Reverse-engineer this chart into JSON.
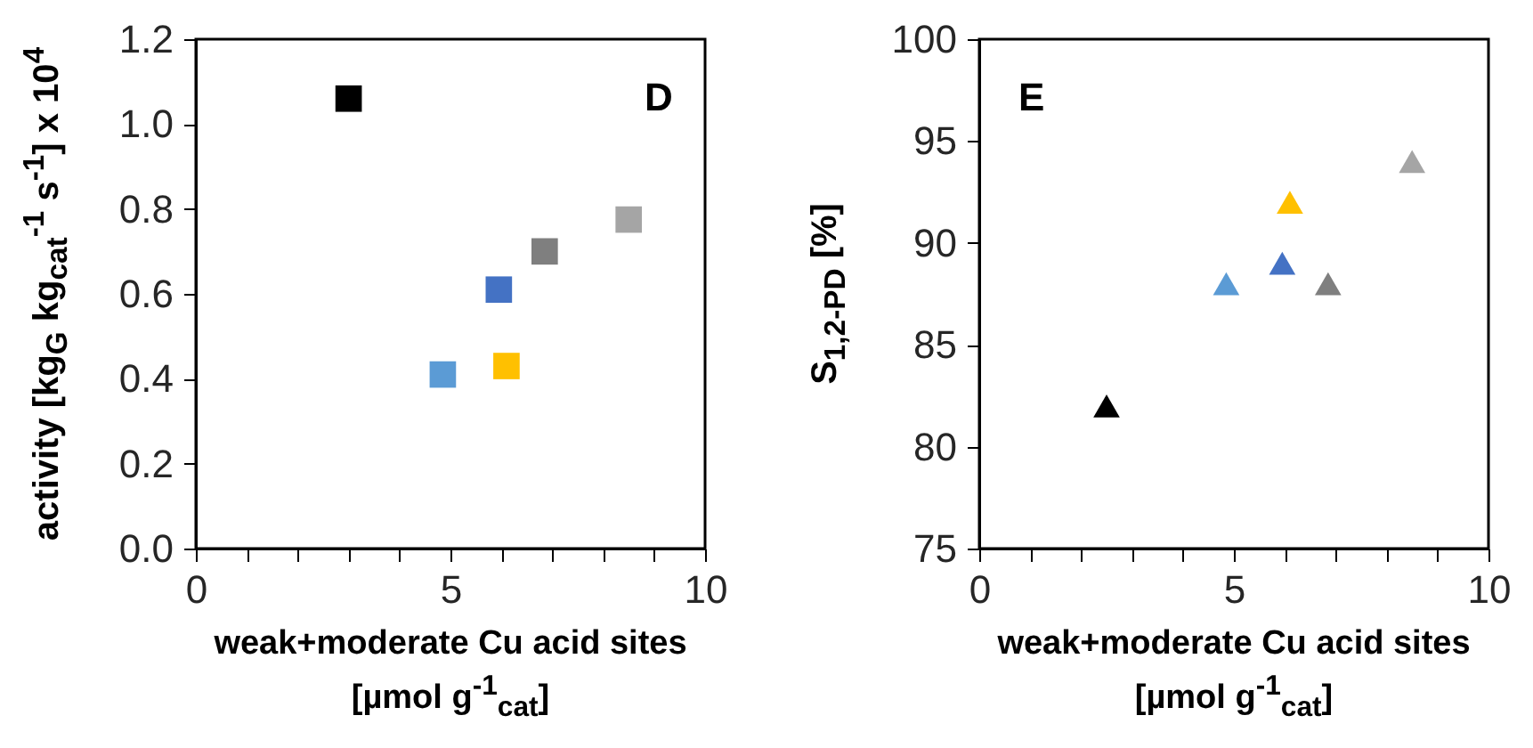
{
  "chart_data": [
    {
      "type": "scatter",
      "xlabel": "weak+moderate Cu acid sites\n[µmol g$^{-1}$$_{cat}$]",
      "ylabel": "activity [kg$_{G}$ kg$_{cat}$$^{-1}$ s$^{-1}$] x 10$^{4}$",
      "annotations": [
        "D"
      ],
      "marker": "square",
      "x": [
        3.0,
        4.85,
        5.95,
        6.1,
        6.85,
        8.5
      ],
      "values": [
        1.06,
        0.41,
        0.61,
        0.43,
        0.7,
        0.775
      ],
      "colors": [
        "#000000",
        "#5b9bd5",
        "#4472c4",
        "#ffc000",
        "#7f7f7f",
        "#a5a5a5"
      ],
      "xlim": [
        0,
        10
      ],
      "xticks": [
        0,
        {
          "value": 1,
          "label": null
        },
        {
          "value": 2,
          "label": null
        },
        {
          "value": 3,
          "label": null
        },
        {
          "value": 4,
          "label": null
        },
        5,
        {
          "value": 6,
          "label": null
        },
        {
          "value": 7,
          "label": null
        },
        {
          "value": 8,
          "label": null
        },
        {
          "value": 9,
          "label": null
        },
        10
      ],
      "ylim": [
        0,
        1.2
      ],
      "yticks": [
        {
          "value": 0,
          "label": "0.0"
        },
        0.2,
        0.4,
        0.6,
        0.8,
        {
          "value": 1,
          "label": "1.0"
        },
        1.2
      ],
      "grid": false
    },
    {
      "type": "scatter",
      "xlabel": "weak+moderate Cu acid sites\n[µmol g$^{-1}$$_{cat}$]",
      "ylabel": "S$_{1,2-PD}$ [%]",
      "annotations": [
        "E"
      ],
      "marker": "triangle",
      "x": [
        2.5,
        4.85,
        5.95,
        6.1,
        6.85,
        8.5
      ],
      "values": [
        82,
        88,
        89,
        92,
        88,
        94
      ],
      "colors": [
        "#000000",
        "#5b9bd5",
        "#4472c4",
        "#ffc000",
        "#7f7f7f",
        "#a5a5a5"
      ],
      "xlim": [
        0,
        10
      ],
      "xticks": [
        0,
        {
          "value": 1,
          "label": null
        },
        {
          "value": 2,
          "label": null
        },
        {
          "value": 3,
          "label": null
        },
        {
          "value": 4,
          "label": null
        },
        5,
        {
          "value": 6,
          "label": null
        },
        {
          "value": 7,
          "label": null
        },
        {
          "value": 8,
          "label": null
        },
        {
          "value": 9,
          "label": null
        },
        10
      ],
      "ylim": [
        75,
        100
      ],
      "yticks": [
        75,
        80,
        85,
        90,
        95,
        100
      ],
      "grid": false
    }
  ]
}
